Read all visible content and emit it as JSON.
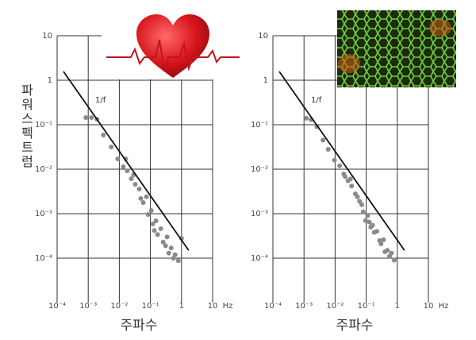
{
  "chart_data": [
    {
      "type": "scatter",
      "y_label": "파워스펙트럼",
      "x_label": "주파수",
      "x_unit": "Hz",
      "annotation": "1/f",
      "log_x": true,
      "log_y": true,
      "grid": true,
      "xlim": [
        0.0001,
        10
      ],
      "ylim": [
        1e-05,
        10
      ],
      "xticks": [
        {
          "value": 0.0001,
          "label": "10⁻⁴"
        },
        {
          "value": 0.001,
          "label": "10⁻³"
        },
        {
          "value": 0.01,
          "label": "10⁻²"
        },
        {
          "value": 0.1,
          "label": "10⁻¹"
        },
        1,
        10
      ],
      "yticks": [
        10,
        1,
        {
          "value": 0.1,
          "label": "10⁻¹"
        },
        {
          "value": 0.01,
          "label": "10⁻²"
        },
        {
          "value": 0.001,
          "label": "10⁻³"
        },
        {
          "value": 0.0001,
          "label": "10⁻⁴"
        }
      ],
      "series": [
        {
          "color": "#8a8a8a",
          "x": [
            0.00084,
            0.00127,
            0.00191,
            0.00307,
            0.0055,
            0.0089,
            0.0134,
            0.018,
            0.0243,
            0.0326,
            0.0438,
            0.0587,
            0.0838,
            0.106,
            0.134,
            0.17,
            0.215,
            0.257,
            0.345,
            0.464,
            0.624,
            0.789,
            1.0,
            0.016,
            0.029,
            0.049,
            0.0745,
            0.119,
            0.307,
            0.555,
            0.151,
            0.389
          ],
          "values": [
            0.145,
            0.145,
            0.133,
            0.0586,
            0.0316,
            0.0171,
            0.0113,
            0.0092,
            0.0061,
            0.00458,
            0.00358,
            0.00178,
            0.00096,
            0.00118,
            0.00042,
            0.00034,
            0.00046,
            0.00023,
            0.0003,
            0.00017,
            0.00012,
            8.8e-05,
            0.00028,
            0.0171,
            0.0075,
            0.0022,
            0.0024,
            0.00059,
            0.00019,
            0.0001,
            0.00069,
            0.00013
          ]
        }
      ],
      "fit_line": {
        "color": "#111111",
        "x": [
          0.00016,
          1.7
        ],
        "values": [
          1.57,
          0.00015
        ]
      }
    },
    {
      "type": "scatter",
      "x_label": "주파수",
      "x_unit": "Hz",
      "annotation": "1/f",
      "log_x": true,
      "log_y": true,
      "grid": true,
      "xlim": [
        0.0001,
        10
      ],
      "ylim": [
        1e-05,
        10
      ],
      "xticks": [
        {
          "value": 0.0001,
          "label": "10⁻⁴"
        },
        {
          "value": 0.001,
          "label": "10⁻³"
        },
        {
          "value": 0.01,
          "label": "10⁻²"
        },
        {
          "value": 0.1,
          "label": "10⁻¹"
        },
        1,
        10
      ],
      "yticks": [
        10,
        1,
        {
          "value": 0.1,
          "label": "10⁻¹"
        },
        {
          "value": 0.01,
          "label": "10⁻²"
        },
        {
          "value": 0.001,
          "label": "10⁻³"
        },
        {
          "value": 0.0001,
          "label": "10⁻⁴"
        }
      ],
      "series": [
        {
          "color": "#8a8a8a",
          "x": [
            0.0012,
            0.0017,
            0.0026,
            0.0041,
            0.006,
            0.0095,
            0.014,
            0.019,
            0.026,
            0.034,
            0.045,
            0.061,
            0.08,
            0.11,
            0.14,
            0.18,
            0.22,
            0.27,
            0.36,
            0.48,
            0.65,
            0.8,
            0.021,
            0.031,
            0.052,
            0.072,
            0.125,
            0.3,
            0.56,
            0.16,
            0.4,
            0.095
          ],
          "values": [
            0.14,
            0.13,
            0.09,
            0.045,
            0.028,
            0.016,
            0.012,
            0.0078,
            0.0055,
            0.0042,
            0.0028,
            0.0019,
            0.0011,
            0.0009,
            0.0005,
            0.00038,
            0.0004,
            0.00025,
            0.00026,
            0.00015,
            0.00013,
            9e-05,
            0.0068,
            0.006,
            0.0024,
            0.0016,
            0.00065,
            0.00021,
            0.00011,
            0.00055,
            0.00014,
            0.0007
          ]
        }
      ],
      "fit_line": {
        "color": "#111111",
        "x": [
          0.00016,
          1.7
        ],
        "values": [
          1.57,
          0.00015
        ]
      }
    }
  ]
}
